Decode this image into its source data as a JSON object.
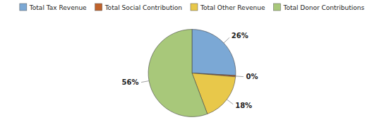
{
  "chart_data": {
    "type": "pie",
    "categories": [
      "Total Tax Revenue",
      "Total Social Contribution",
      "Total Other Revenue",
      "Total Donor Contributions"
    ],
    "values": [
      26,
      0.5,
      18,
      56
    ],
    "value_labels": [
      "26%",
      "0%",
      "18%",
      "56%"
    ],
    "colors": [
      "#7BA8D5",
      "#C0622B",
      "#E8C84A",
      "#A8C87A"
    ],
    "data_labels": true,
    "legend": "top"
  }
}
